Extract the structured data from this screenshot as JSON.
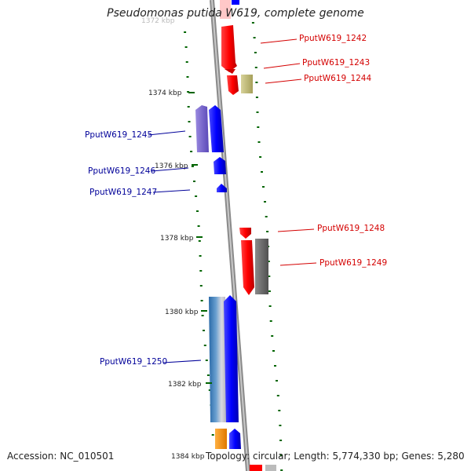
{
  "title": "Pseudomonas putida W619, complete genome",
  "accession_label": "Accession: NC_010501",
  "summary_label": "Topology: circular; Length: 5,774,330 bp; Genes: 5,280",
  "scale_ticks": [
    {
      "label": "1372 kbp",
      "faint": true
    },
    {
      "label": "1374 kbp"
    },
    {
      "label": "1376 kbp"
    },
    {
      "label": "1378 kbp"
    },
    {
      "label": "1380 kbp"
    },
    {
      "label": "1382 kbp"
    },
    {
      "label": "1384 kbp"
    }
  ],
  "genes_forward": [
    {
      "label": "PputW619_1242",
      "color": "#ff0000"
    },
    {
      "label": "PputW619_1243",
      "color": "#ff0000"
    },
    {
      "label": "PputW619_1244",
      "color": "#bdb76b"
    },
    {
      "label": "PputW619_1248",
      "color": "#ff0000"
    },
    {
      "label": "PputW619_1249",
      "color": "#666666"
    }
  ],
  "genes_reverse": [
    {
      "label": "PputW619_1245",
      "color": "#0000ff"
    },
    {
      "label": "PputW619_1246",
      "color": "#0000ff"
    },
    {
      "label": "PputW619_1247",
      "color": "#0000ff"
    },
    {
      "label": "PputW619_1250",
      "color": "#0000ff"
    }
  ],
  "colors": {
    "backbone": "#888888",
    "gc_dots": "#006400",
    "forward_label": "#d40000",
    "reverse_label": "#000099"
  }
}
